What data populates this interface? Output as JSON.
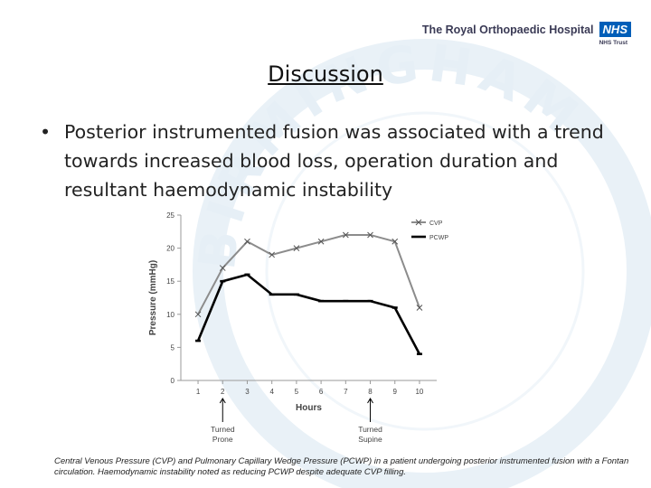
{
  "header": {
    "logo_text": "The Royal Orthopaedic Hospital",
    "nhs_badge": "NHS",
    "trust_label": "NHS Trust"
  },
  "slide": {
    "title": "Discussion",
    "bullet": "Posterior instrumented fusion was associated with a trend towards increased blood loss, operation duration and resultant haemodynamic instability",
    "caption": "Central Venous Pressure (CVP) and Pulmonary Capillary Wedge Pressure (PCWP) in a patient undergoing posterior instrumented fusion with a Fontan circulation. Haemodynamic instability noted as reducing PCWP despite adequate CVP filling."
  },
  "chart_data": {
    "type": "line",
    "title": "",
    "xlabel": "Hours",
    "ylabel": "Pressure (mmHg)",
    "x": [
      1,
      2,
      3,
      4,
      5,
      6,
      7,
      8,
      9,
      10
    ],
    "ylim": [
      0,
      25
    ],
    "yticks": [
      0,
      5,
      10,
      15,
      20,
      25
    ],
    "grid": false,
    "legend_position": "top-right",
    "series": [
      {
        "name": "CVP",
        "color": "#8c8c8c",
        "marker": "x",
        "values": [
          10,
          17,
          21,
          19,
          20,
          21,
          22,
          22,
          21,
          11
        ]
      },
      {
        "name": "PCWP",
        "color": "#000000",
        "marker": "-",
        "values": [
          6,
          15,
          16,
          13,
          13,
          12,
          12,
          12,
          11,
          4
        ]
      }
    ],
    "annotations": [
      {
        "x": 2,
        "text": "Turned Prone"
      },
      {
        "x": 8,
        "text": "Turned Supine"
      }
    ]
  }
}
